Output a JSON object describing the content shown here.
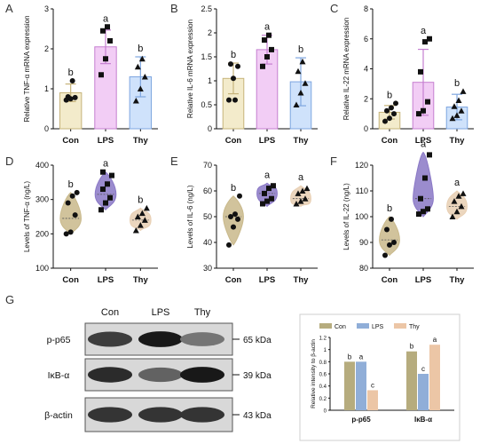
{
  "colors": {
    "con": "#f3ebcb",
    "lps": "#f2cdf5",
    "thy": "#cfe2fb",
    "con_edge": "#c6b37a",
    "lps_edge": "#c57fd0",
    "thy_edge": "#7ea6e0",
    "con_violin": "#c9b98b",
    "lps_violin": "#8a78c6",
    "thy_violin": "#e8cfb3",
    "g_con": "#b6ac7e",
    "g_lps": "#90aed8",
    "g_thy": "#ecc6a6"
  },
  "chart_data": [
    {
      "panel": "A",
      "type": "bar",
      "categories": [
        "Con",
        "LPS",
        "Thy"
      ],
      "values": [
        0.9,
        2.05,
        1.3
      ],
      "errors": [
        0.22,
        0.42,
        0.5
      ],
      "significance": [
        "b",
        "a",
        "b"
      ],
      "points": [
        [
          0.72,
          0.75,
          0.78,
          0.8,
          1.2
        ],
        [
          1.35,
          1.75,
          2.2,
          2.45,
          2.55
        ],
        [
          0.7,
          1.0,
          1.3,
          1.55,
          1.75
        ]
      ],
      "ylabel": "Relative TNF-α mRNA expression",
      "ylim": [
        0,
        3
      ],
      "yticks": [
        0,
        1,
        2,
        3
      ]
    },
    {
      "panel": "B",
      "type": "bar",
      "categories": [
        "Con",
        "LPS",
        "Thy"
      ],
      "values": [
        1.05,
        1.65,
        0.98
      ],
      "errors": [
        0.32,
        0.3,
        0.5
      ],
      "significance": [
        "b",
        "a",
        "b"
      ],
      "points": [
        [
          0.6,
          1.05,
          1.3,
          1.35,
          0.6
        ],
        [
          1.3,
          1.5,
          1.65,
          1.85,
          1.95
        ],
        [
          0.5,
          0.75,
          0.95,
          1.2,
          1.4
        ]
      ],
      "ylabel": "Relative IL-6 mRNA expression",
      "ylim": [
        0,
        2.5
      ],
      "yticks": [
        0,
        0.5,
        1.0,
        1.5,
        2.0,
        2.5
      ]
    },
    {
      "panel": "C",
      "type": "bar",
      "categories": [
        "Con",
        "LPS",
        "Thy"
      ],
      "values": [
        1.1,
        3.1,
        1.45
      ],
      "errors": [
        0.45,
        2.2,
        0.85
      ],
      "significance": [
        "b",
        "a",
        "b"
      ],
      "points": [
        [
          0.5,
          0.7,
          1.0,
          1.2,
          1.4,
          1.7
        ],
        [
          1.0,
          1.2,
          1.8,
          3.8,
          5.8,
          6.0
        ],
        [
          0.7,
          0.9,
          1.2,
          1.5,
          1.9,
          2.5
        ]
      ],
      "ylabel": "Relative IL-22 mRNA expression",
      "ylim": [
        0,
        8
      ],
      "yticks": [
        0,
        2,
        4,
        6,
        8
      ]
    },
    {
      "panel": "D",
      "type": "violin",
      "categories": [
        "Con",
        "LPS",
        "Thy"
      ],
      "medians": [
        245,
        315,
        240
      ],
      "ranges": [
        [
          200,
          320
        ],
        [
          270,
          380
        ],
        [
          210,
          275
        ]
      ],
      "significance": [
        "b",
        "a",
        "b"
      ],
      "points": [
        [
          200,
          205,
          255,
          290,
          310,
          320
        ],
        [
          270,
          290,
          305,
          330,
          345,
          370,
          380
        ],
        [
          210,
          225,
          240,
          250,
          260,
          275
        ]
      ],
      "ylabel": "Levels of TNF-α (ng/L)",
      "ylim": [
        100,
        400
      ],
      "yticks": [
        100,
        200,
        300,
        400
      ]
    },
    {
      "panel": "E",
      "type": "violin",
      "categories": [
        "Con",
        "LPS",
        "Thy"
      ],
      "medians": [
        50,
        59,
        57
      ],
      "ranges": [
        [
          39,
          58
        ],
        [
          54,
          63
        ],
        [
          54,
          62
        ]
      ],
      "significance": [
        "b",
        "a",
        "a"
      ],
      "points": [
        [
          39,
          46,
          49,
          50,
          51,
          58
        ],
        [
          55,
          56,
          57,
          59,
          61,
          62
        ],
        [
          55,
          56,
          57,
          59,
          60,
          61
        ]
      ],
      "ylabel": "Levels of IL-6 (ng/L)",
      "ylim": [
        30,
        70
      ],
      "yticks": [
        30,
        40,
        50,
        60,
        70
      ]
    },
    {
      "panel": "F",
      "type": "violin",
      "categories": [
        "Con",
        "LPS",
        "Thy"
      ],
      "medians": [
        91,
        107,
        104
      ],
      "ranges": [
        [
          85,
          100
        ],
        [
          100,
          125
        ],
        [
          99,
          110
        ]
      ],
      "significance": [
        "b",
        "a",
        "a"
      ],
      "points": [
        [
          85,
          89,
          90,
          95,
          99
        ],
        [
          101,
          102,
          103,
          107,
          115,
          124
        ],
        [
          100,
          102,
          104,
          106,
          108,
          109
        ]
      ],
      "ylabel": "Levels of IL-22 (ng/L)",
      "ylim": [
        80,
        120
      ],
      "yticks": [
        80,
        90,
        100,
        110,
        120
      ]
    },
    {
      "panel": "G",
      "type": "bar",
      "categories": [
        "p-p65",
        "IκB-α"
      ],
      "series": [
        {
          "name": "Con",
          "values": [
            0.8,
            0.97
          ],
          "significance": [
            "b",
            "b"
          ]
        },
        {
          "name": "LPS",
          "values": [
            0.8,
            0.6
          ],
          "significance": [
            "a",
            "c"
          ]
        },
        {
          "name": "Thy",
          "values": [
            0.33,
            1.08
          ],
          "significance": [
            "c",
            "a"
          ]
        }
      ],
      "ylabel": "Relative intensity to β-actin",
      "ylim": [
        0,
        1.2
      ],
      "yticks": [
        0,
        0.2,
        0.4,
        0.6,
        0.8,
        1.0,
        1.2
      ],
      "legend": "top"
    }
  ],
  "blot": {
    "letter": "G",
    "lanes": [
      "Con",
      "LPS",
      "Thy"
    ],
    "rows": [
      {
        "protein": "p-p65",
        "size": "65 kDa",
        "intensity": [
          0.75,
          0.95,
          0.45
        ]
      },
      {
        "protein": "IκB-α",
        "size": "39 kDa",
        "intensity": [
          0.85,
          0.55,
          0.95
        ]
      },
      {
        "protein": "β-actin",
        "size": "43 kDa",
        "intensity": [
          0.8,
          0.8,
          0.8
        ]
      }
    ]
  }
}
